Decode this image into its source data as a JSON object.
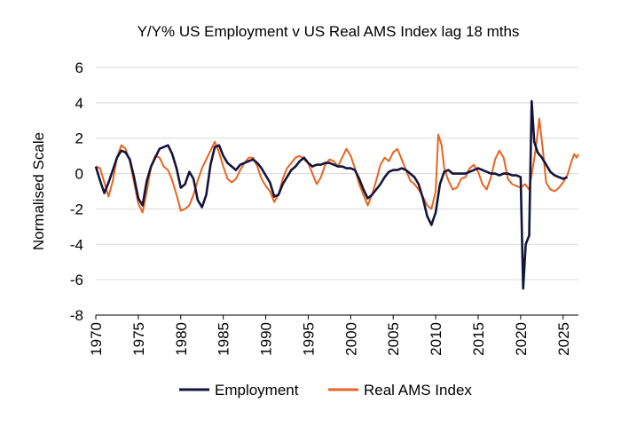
{
  "chart_data": {
    "type": "line",
    "title": "Y/Y% US Employment v US Real AMS Index lag 18 mths",
    "ylabel": "Normalised Scale",
    "xlabel": "",
    "xlim": [
      1970,
      2026.8
    ],
    "ylim": [
      -8,
      6
    ],
    "yticks": [
      -8,
      -6,
      -4,
      -2,
      0,
      2,
      4,
      6
    ],
    "xticks": [
      1970,
      1975,
      1980,
      1985,
      1990,
      1995,
      2000,
      2005,
      2010,
      2015,
      2020,
      2025
    ],
    "grid": true,
    "legend": "bottom",
    "series": [
      {
        "name": "Employment",
        "color": "#14143c",
        "points": [
          [
            1970.0,
            0.4
          ],
          [
            1970.5,
            -0.4
          ],
          [
            1971.0,
            -1.1
          ],
          [
            1971.5,
            -0.5
          ],
          [
            1972.0,
            0.2
          ],
          [
            1972.5,
            0.9
          ],
          [
            1973.0,
            1.3
          ],
          [
            1973.5,
            1.2
          ],
          [
            1974.0,
            0.8
          ],
          [
            1974.5,
            -0.2
          ],
          [
            1975.0,
            -1.4
          ],
          [
            1975.5,
            -1.8
          ],
          [
            1976.0,
            -0.4
          ],
          [
            1976.5,
            0.4
          ],
          [
            1977.0,
            0.9
          ],
          [
            1977.5,
            1.4
          ],
          [
            1978.0,
            1.5
          ],
          [
            1978.5,
            1.6
          ],
          [
            1979.0,
            1.1
          ],
          [
            1979.5,
            0.3
          ],
          [
            1980.0,
            -0.8
          ],
          [
            1980.5,
            -0.6
          ],
          [
            1981.0,
            0.1
          ],
          [
            1981.5,
            -0.3
          ],
          [
            1982.0,
            -1.5
          ],
          [
            1982.5,
            -1.9
          ],
          [
            1983.0,
            -1.2
          ],
          [
            1983.5,
            0.5
          ],
          [
            1984.0,
            1.5
          ],
          [
            1984.5,
            1.6
          ],
          [
            1985.0,
            1.0
          ],
          [
            1985.5,
            0.6
          ],
          [
            1986.0,
            0.4
          ],
          [
            1986.5,
            0.2
          ],
          [
            1987.0,
            0.5
          ],
          [
            1987.5,
            0.6
          ],
          [
            1988.0,
            0.7
          ],
          [
            1988.5,
            0.8
          ],
          [
            1989.0,
            0.6
          ],
          [
            1989.5,
            0.3
          ],
          [
            1990.0,
            -0.1
          ],
          [
            1990.5,
            -0.5
          ],
          [
            1991.0,
            -1.3
          ],
          [
            1991.5,
            -1.2
          ],
          [
            1992.0,
            -0.6
          ],
          [
            1992.5,
            -0.2
          ],
          [
            1993.0,
            0.2
          ],
          [
            1993.5,
            0.4
          ],
          [
            1994.0,
            0.7
          ],
          [
            1994.5,
            0.9
          ],
          [
            1995.0,
            0.6
          ],
          [
            1995.5,
            0.4
          ],
          [
            1996.0,
            0.5
          ],
          [
            1996.5,
            0.5
          ],
          [
            1997.0,
            0.6
          ],
          [
            1997.5,
            0.6
          ],
          [
            1998.0,
            0.5
          ],
          [
            1998.5,
            0.4
          ],
          [
            1999.0,
            0.4
          ],
          [
            1999.5,
            0.3
          ],
          [
            2000.0,
            0.3
          ],
          [
            2000.5,
            0.2
          ],
          [
            2001.0,
            -0.3
          ],
          [
            2001.5,
            -0.9
          ],
          [
            2002.0,
            -1.4
          ],
          [
            2002.5,
            -1.2
          ],
          [
            2003.0,
            -0.9
          ],
          [
            2003.5,
            -0.6
          ],
          [
            2004.0,
            -0.2
          ],
          [
            2004.5,
            0.1
          ],
          [
            2005.0,
            0.2
          ],
          [
            2005.5,
            0.2
          ],
          [
            2006.0,
            0.3
          ],
          [
            2006.5,
            0.2
          ],
          [
            2007.0,
            0.0
          ],
          [
            2007.5,
            -0.2
          ],
          [
            2008.0,
            -0.6
          ],
          [
            2008.5,
            -1.4
          ],
          [
            2009.0,
            -2.4
          ],
          [
            2009.5,
            -2.9
          ],
          [
            2010.0,
            -2.2
          ],
          [
            2010.5,
            -0.6
          ],
          [
            2011.0,
            0.1
          ],
          [
            2011.5,
            0.2
          ],
          [
            2012.0,
            0.0
          ],
          [
            2012.5,
            0.0
          ],
          [
            2013.0,
            0.0
          ],
          [
            2013.5,
            0.0
          ],
          [
            2014.0,
            0.1
          ],
          [
            2014.5,
            0.2
          ],
          [
            2015.0,
            0.3
          ],
          [
            2015.5,
            0.2
          ],
          [
            2016.0,
            0.1
          ],
          [
            2016.5,
            0.0
          ],
          [
            2017.0,
            0.0
          ],
          [
            2017.5,
            -0.1
          ],
          [
            2018.0,
            0.0
          ],
          [
            2018.5,
            0.0
          ],
          [
            2019.0,
            -0.1
          ],
          [
            2019.5,
            -0.1
          ],
          [
            2020.0,
            -0.2
          ],
          [
            2020.3,
            -6.5
          ],
          [
            2020.6,
            -4.0
          ],
          [
            2021.0,
            -3.5
          ],
          [
            2021.3,
            4.1
          ],
          [
            2021.6,
            1.8
          ],
          [
            2022.0,
            1.2
          ],
          [
            2022.5,
            0.9
          ],
          [
            2023.0,
            0.5
          ],
          [
            2023.5,
            0.1
          ],
          [
            2024.0,
            -0.1
          ],
          [
            2024.5,
            -0.2
          ],
          [
            2025.0,
            -0.3
          ],
          [
            2025.5,
            -0.2
          ]
        ]
      },
      {
        "name": "Real AMS Index",
        "color": "#e8641e",
        "points": [
          [
            1970.0,
            0.4
          ],
          [
            1970.5,
            0.3
          ],
          [
            1971.0,
            -0.5
          ],
          [
            1971.5,
            -1.3
          ],
          [
            1972.0,
            -0.4
          ],
          [
            1972.5,
            0.9
          ],
          [
            1973.0,
            1.6
          ],
          [
            1973.5,
            1.4
          ],
          [
            1974.0,
            0.7
          ],
          [
            1974.5,
            -0.5
          ],
          [
            1975.0,
            -1.7
          ],
          [
            1975.5,
            -2.2
          ],
          [
            1976.0,
            -1.0
          ],
          [
            1976.5,
            0.4
          ],
          [
            1977.0,
            1.0
          ],
          [
            1977.5,
            0.9
          ],
          [
            1978.0,
            0.4
          ],
          [
            1978.5,
            0.2
          ],
          [
            1979.0,
            -0.4
          ],
          [
            1979.5,
            -1.2
          ],
          [
            1980.0,
            -2.1
          ],
          [
            1980.5,
            -2.0
          ],
          [
            1981.0,
            -1.8
          ],
          [
            1981.5,
            -1.2
          ],
          [
            1982.0,
            -0.4
          ],
          [
            1982.5,
            0.3
          ],
          [
            1983.0,
            0.8
          ],
          [
            1983.5,
            1.3
          ],
          [
            1984.0,
            1.8
          ],
          [
            1984.5,
            1.2
          ],
          [
            1985.0,
            0.4
          ],
          [
            1985.5,
            -0.3
          ],
          [
            1986.0,
            -0.5
          ],
          [
            1986.5,
            -0.3
          ],
          [
            1987.0,
            0.2
          ],
          [
            1987.5,
            0.6
          ],
          [
            1988.0,
            0.9
          ],
          [
            1988.5,
            0.9
          ],
          [
            1989.0,
            0.4
          ],
          [
            1989.5,
            -0.3
          ],
          [
            1990.0,
            -0.7
          ],
          [
            1990.5,
            -1.0
          ],
          [
            1991.0,
            -1.6
          ],
          [
            1991.5,
            -1.2
          ],
          [
            1992.0,
            -0.3
          ],
          [
            1992.5,
            0.3
          ],
          [
            1993.0,
            0.6
          ],
          [
            1993.5,
            0.9
          ],
          [
            1994.0,
            1.0
          ],
          [
            1994.5,
            0.8
          ],
          [
            1995.0,
            0.6
          ],
          [
            1995.5,
            0.0
          ],
          [
            1996.0,
            -0.6
          ],
          [
            1996.5,
            -0.2
          ],
          [
            1997.0,
            0.5
          ],
          [
            1997.5,
            0.8
          ],
          [
            1998.0,
            0.7
          ],
          [
            1998.5,
            0.4
          ],
          [
            1999.0,
            0.9
          ],
          [
            1999.5,
            1.4
          ],
          [
            2000.0,
            1.0
          ],
          [
            2000.5,
            0.3
          ],
          [
            2001.0,
            -0.6
          ],
          [
            2001.5,
            -1.2
          ],
          [
            2002.0,
            -1.8
          ],
          [
            2002.5,
            -1.2
          ],
          [
            2003.0,
            -0.4
          ],
          [
            2003.5,
            0.5
          ],
          [
            2004.0,
            0.9
          ],
          [
            2004.5,
            0.7
          ],
          [
            2005.0,
            1.2
          ],
          [
            2005.5,
            1.4
          ],
          [
            2006.0,
            0.8
          ],
          [
            2006.5,
            0.2
          ],
          [
            2007.0,
            -0.4
          ],
          [
            2007.5,
            -0.6
          ],
          [
            2008.0,
            -0.9
          ],
          [
            2008.5,
            -1.3
          ],
          [
            2009.0,
            -1.8
          ],
          [
            2009.5,
            -2.0
          ],
          [
            2010.0,
            -1.0
          ],
          [
            2010.3,
            2.2
          ],
          [
            2010.7,
            1.6
          ],
          [
            2011.0,
            0.3
          ],
          [
            2011.5,
            -0.4
          ],
          [
            2012.0,
            -0.9
          ],
          [
            2012.5,
            -0.8
          ],
          [
            2013.0,
            -0.3
          ],
          [
            2013.5,
            -0.2
          ],
          [
            2014.0,
            0.3
          ],
          [
            2014.5,
            0.5
          ],
          [
            2015.0,
            0.1
          ],
          [
            2015.5,
            -0.6
          ],
          [
            2016.0,
            -0.9
          ],
          [
            2016.5,
            -0.2
          ],
          [
            2017.0,
            0.8
          ],
          [
            2017.5,
            1.3
          ],
          [
            2018.0,
            0.9
          ],
          [
            2018.5,
            -0.3
          ],
          [
            2019.0,
            -0.6
          ],
          [
            2019.5,
            -0.7
          ],
          [
            2020.0,
            -0.8
          ],
          [
            2020.5,
            -0.6
          ],
          [
            2021.0,
            -0.9
          ],
          [
            2021.5,
            0.5
          ],
          [
            2021.8,
            1.5
          ],
          [
            2022.2,
            3.1
          ],
          [
            2022.6,
            1.4
          ],
          [
            2023.0,
            -0.5
          ],
          [
            2023.5,
            -0.9
          ],
          [
            2024.0,
            -1.0
          ],
          [
            2024.5,
            -0.8
          ],
          [
            2025.0,
            -0.5
          ],
          [
            2025.5,
            -0.1
          ],
          [
            2026.0,
            0.7
          ],
          [
            2026.3,
            1.1
          ],
          [
            2026.6,
            0.9
          ],
          [
            2026.8,
            1.1
          ]
        ]
      }
    ]
  }
}
